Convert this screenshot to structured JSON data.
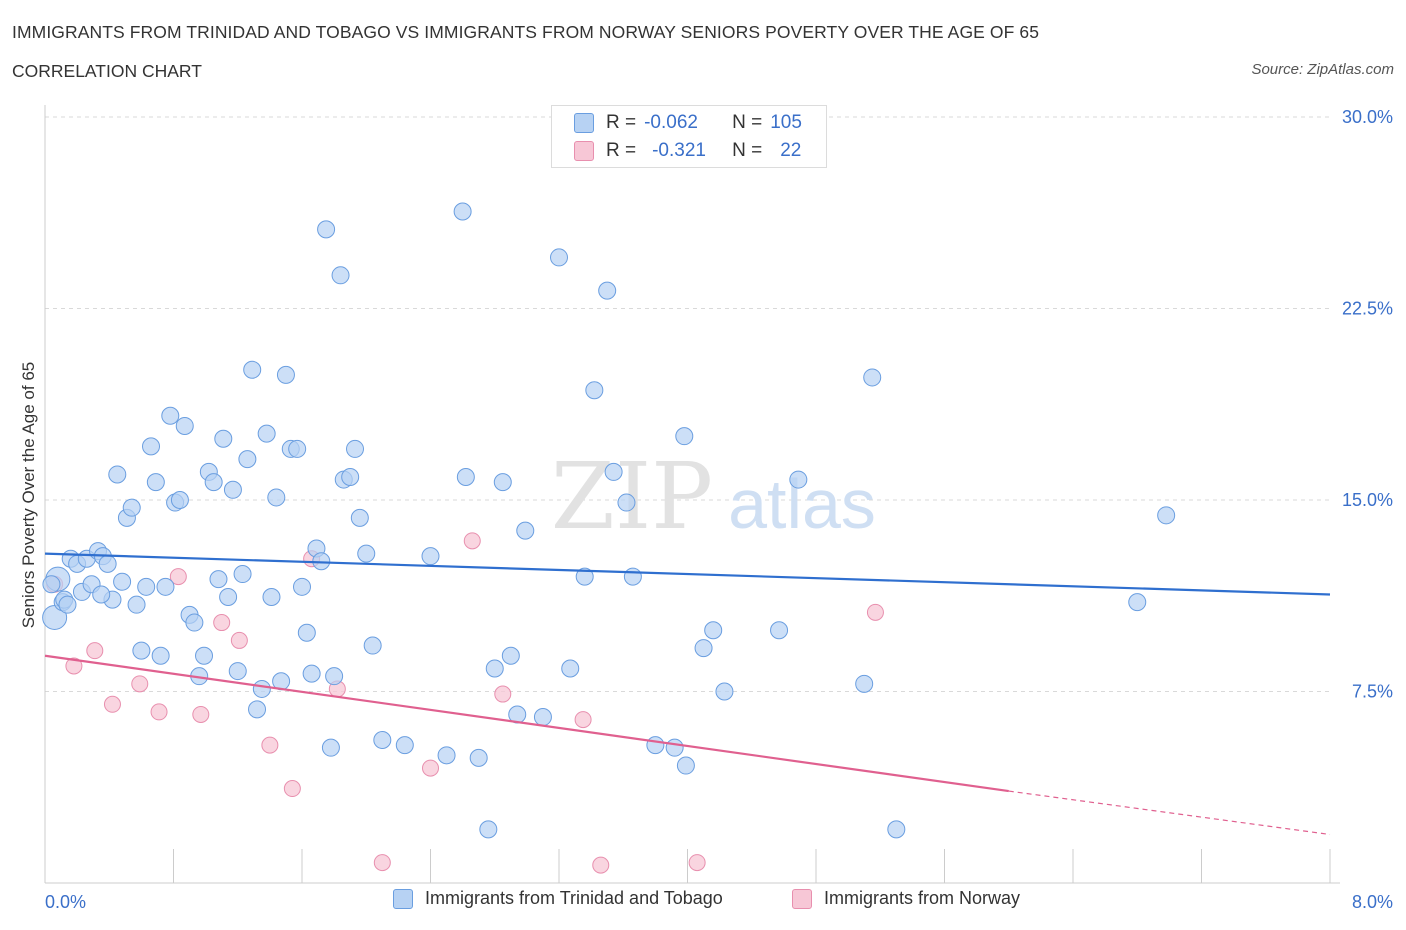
{
  "title": "IMMIGRANTS FROM TRINIDAD AND TOBAGO VS IMMIGRANTS FROM NORWAY SENIORS POVERTY OVER THE AGE OF 65",
  "subtitle": "CORRELATION CHART",
  "source": "Source: ZipAtlas.com",
  "watermark": {
    "zip": "ZIP",
    "atlas": "atlas"
  },
  "colors": {
    "blue_fill": "#b7d2f3",
    "blue_stroke": "#6a9ee0",
    "blue_line": "#2f6fcf",
    "pink_fill": "#f7c7d6",
    "pink_stroke": "#e88fae",
    "pink_line": "#e0608f",
    "axis_text": "#3a6fc9",
    "grid": "#d9d9d9"
  },
  "stats": {
    "rows": [
      {
        "r_label": "R =",
        "r_value": "-0.062",
        "n_label": "N =",
        "n_value": "105",
        "series": "blue"
      },
      {
        "r_label": "R =",
        "r_value": "-0.321",
        "n_label": "N =",
        "n_value": "22",
        "series": "pink"
      }
    ]
  },
  "legend": [
    {
      "label": "Immigrants from Trinidad and Tobago",
      "series": "blue"
    },
    {
      "label": "Immigrants from Norway",
      "series": "pink"
    }
  ],
  "chart_data": {
    "type": "scatter",
    "title": "IMMIGRANTS FROM TRINIDAD AND TOBAGO VS IMMIGRANTS FROM NORWAY SENIORS POVERTY OVER THE AGE OF 65",
    "xlabel": "",
    "ylabel": "Seniors Poverty Over the Age of 65",
    "xlim": [
      0,
      8
    ],
    "ylim": [
      0,
      30
    ],
    "x_tick_labels": [
      "0.0%",
      "8.0%"
    ],
    "y_ticks": [
      7.5,
      15.0,
      22.5,
      30.0
    ],
    "y_tick_labels": [
      "7.5%",
      "15.0%",
      "22.5%",
      "30.0%"
    ],
    "grid": true,
    "legend_position": "bottom",
    "series": [
      {
        "name": "Immigrants from Trinidad and Tobago",
        "color": "#6a9ee0",
        "trend": {
          "x": [
            0.0,
            8.0
          ],
          "y": [
            12.9,
            11.3
          ]
        },
        "points": [
          [
            0.06,
            10.4
          ],
          [
            0.08,
            11.9
          ],
          [
            0.11,
            11.0
          ],
          [
            0.12,
            11.1
          ],
          [
            0.16,
            12.7
          ],
          [
            0.2,
            12.5
          ],
          [
            0.23,
            11.4
          ],
          [
            0.26,
            12.7
          ],
          [
            0.29,
            11.7
          ],
          [
            0.33,
            13.0
          ],
          [
            0.36,
            12.8
          ],
          [
            0.39,
            12.5
          ],
          [
            0.42,
            11.1
          ],
          [
            0.45,
            16.0
          ],
          [
            0.48,
            11.8
          ],
          [
            0.51,
            14.3
          ],
          [
            0.54,
            14.7
          ],
          [
            0.57,
            10.9
          ],
          [
            0.6,
            9.1
          ],
          [
            0.63,
            11.6
          ],
          [
            0.66,
            17.1
          ],
          [
            0.69,
            15.7
          ],
          [
            0.72,
            8.9
          ],
          [
            0.75,
            11.6
          ],
          [
            0.78,
            18.3
          ],
          [
            0.81,
            14.9
          ],
          [
            0.84,
            15.0
          ],
          [
            0.87,
            17.9
          ],
          [
            0.9,
            10.5
          ],
          [
            0.93,
            10.2
          ],
          [
            0.96,
            8.1
          ],
          [
            0.99,
            8.9
          ],
          [
            1.02,
            16.1
          ],
          [
            1.05,
            15.7
          ],
          [
            1.08,
            11.9
          ],
          [
            1.11,
            17.4
          ],
          [
            1.14,
            11.2
          ],
          [
            1.17,
            15.4
          ],
          [
            1.2,
            8.3
          ],
          [
            1.23,
            12.1
          ],
          [
            1.26,
            16.6
          ],
          [
            1.29,
            20.1
          ],
          [
            1.32,
            6.8
          ],
          [
            1.35,
            7.6
          ],
          [
            1.38,
            17.6
          ],
          [
            1.41,
            11.2
          ],
          [
            1.44,
            15.1
          ],
          [
            1.47,
            7.9
          ],
          [
            1.5,
            19.9
          ],
          [
            1.53,
            17.0
          ],
          [
            1.57,
            17.0
          ],
          [
            1.6,
            11.6
          ],
          [
            1.63,
            9.8
          ],
          [
            1.66,
            8.2
          ],
          [
            1.69,
            13.1
          ],
          [
            1.72,
            12.6
          ],
          [
            1.75,
            25.6
          ],
          [
            1.78,
            5.3
          ],
          [
            1.8,
            8.1
          ],
          [
            1.84,
            23.8
          ],
          [
            1.86,
            15.8
          ],
          [
            1.9,
            15.9
          ],
          [
            1.93,
            17.0
          ],
          [
            1.96,
            14.3
          ],
          [
            2.0,
            12.9
          ],
          [
            2.04,
            9.3
          ],
          [
            2.1,
            5.6
          ],
          [
            2.24,
            5.4
          ],
          [
            2.4,
            12.8
          ],
          [
            2.5,
            5.0
          ],
          [
            2.6,
            26.3
          ],
          [
            2.62,
            15.9
          ],
          [
            2.7,
            4.9
          ],
          [
            2.76,
            2.1
          ],
          [
            2.8,
            8.4
          ],
          [
            2.85,
            15.7
          ],
          [
            2.9,
            8.9
          ],
          [
            2.94,
            6.6
          ],
          [
            2.99,
            13.8
          ],
          [
            3.1,
            6.5
          ],
          [
            3.2,
            24.5
          ],
          [
            3.27,
            8.4
          ],
          [
            3.36,
            12.0
          ],
          [
            3.42,
            19.3
          ],
          [
            3.5,
            23.2
          ],
          [
            3.54,
            16.1
          ],
          [
            3.62,
            14.9
          ],
          [
            3.66,
            12.0
          ],
          [
            3.8,
            5.4
          ],
          [
            3.92,
            5.3
          ],
          [
            3.98,
            17.5
          ],
          [
            3.99,
            4.6
          ],
          [
            4.1,
            9.2
          ],
          [
            4.16,
            9.9
          ],
          [
            4.23,
            7.5
          ],
          [
            4.57,
            9.9
          ],
          [
            4.69,
            15.8
          ],
          [
            5.1,
            7.8
          ],
          [
            5.15,
            19.8
          ],
          [
            5.3,
            2.1
          ],
          [
            6.8,
            11.0
          ],
          [
            6.98,
            14.4
          ],
          [
            0.04,
            11.7
          ],
          [
            0.14,
            10.9
          ],
          [
            0.35,
            11.3
          ]
        ],
        "sizes": {
          "0.06,10.4": "large",
          "0.08,11.9": "large"
        }
      },
      {
        "name": "Immigrants from Norway",
        "color": "#e88fae",
        "trend": {
          "x": [
            0.0,
            6.0
          ],
          "y": [
            8.9,
            3.6
          ],
          "dashed_to": [
            8.0,
            1.9
          ]
        },
        "points": [
          [
            0.06,
            11.7
          ],
          [
            0.18,
            8.5
          ],
          [
            0.31,
            9.1
          ],
          [
            0.42,
            7.0
          ],
          [
            0.59,
            7.8
          ],
          [
            0.71,
            6.7
          ],
          [
            0.97,
            6.6
          ],
          [
            1.1,
            10.2
          ],
          [
            1.21,
            9.5
          ],
          [
            1.4,
            5.4
          ],
          [
            1.54,
            3.7
          ],
          [
            1.66,
            12.7
          ],
          [
            1.82,
            7.6
          ],
          [
            2.1,
            0.8
          ],
          [
            2.4,
            4.5
          ],
          [
            2.66,
            13.4
          ],
          [
            2.85,
            7.4
          ],
          [
            3.35,
            6.4
          ],
          [
            3.46,
            0.7
          ],
          [
            4.06,
            0.8
          ],
          [
            5.17,
            10.6
          ],
          [
            0.83,
            12.0
          ]
        ]
      }
    ]
  }
}
